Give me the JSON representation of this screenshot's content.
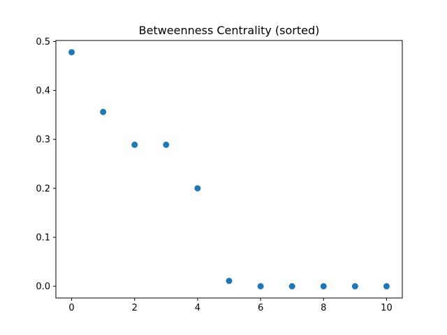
{
  "chart_data": {
    "type": "scatter",
    "title": "Betweenness Centrality (sorted)",
    "xlabel": "",
    "ylabel": "",
    "x": [
      0,
      1,
      2,
      3,
      4,
      5,
      6,
      7,
      8,
      9,
      10
    ],
    "y": [
      0.478,
      0.356,
      0.289,
      0.289,
      0.2,
      0.011,
      0.0,
      0.0,
      0.0,
      0.0,
      0.0
    ],
    "xlim": [
      -0.5,
      10.5
    ],
    "ylim": [
      -0.024,
      0.502
    ],
    "xticks": [
      0,
      2,
      4,
      6,
      8,
      10
    ],
    "xtick_labels": [
      "0",
      "2",
      "4",
      "6",
      "8",
      "10"
    ],
    "yticks": [
      0.0,
      0.1,
      0.2,
      0.3,
      0.4,
      0.5
    ],
    "ytick_labels": [
      "0.0",
      "0.1",
      "0.2",
      "0.3",
      "0.4",
      "0.5"
    ],
    "grid": false,
    "marker_color": "#1f77b4"
  }
}
